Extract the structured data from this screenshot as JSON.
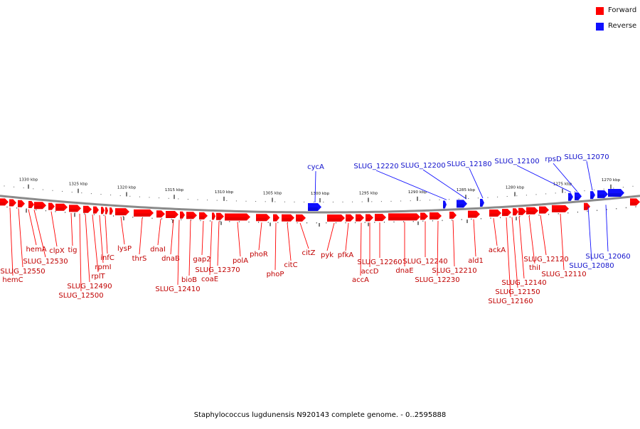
{
  "legend": [
    {
      "label": "Forward",
      "color": "#ff0000"
    },
    {
      "label": "Reverse",
      "color": "#1010ff"
    }
  ],
  "colors": {
    "forward": "#ff0000",
    "reverse": "#1010ff",
    "backbone": "#8a8a8a"
  },
  "caption": "Staphylococcus lugdunensis N920143 complete genome. - 0..2595888",
  "scale_ticks": [
    {
      "label": "1330 kbp"
    },
    {
      "label": "1325 kbp"
    },
    {
      "label": "1320 kbp"
    },
    {
      "label": "1315 kbp"
    },
    {
      "label": "1310 kbp"
    },
    {
      "label": "1305 kbp"
    },
    {
      "label": "1300 kbp"
    },
    {
      "label": "1295 kbp"
    },
    {
      "label": "1290 kbp"
    },
    {
      "label": "1285 kbp"
    },
    {
      "label": "1280 kbp"
    },
    {
      "label": "1275 kbp"
    },
    {
      "label": "1270 kbp"
    }
  ],
  "forward_labels": [
    "hemC",
    "SLUG_12550",
    "hemA",
    "SLUG_12530",
    "clpX",
    "tig",
    "SLUG_12500",
    "SLUG_12490",
    "rplT",
    "rpmI",
    "infC",
    "lysP",
    "thrS",
    "dnaI",
    "dnaB",
    "SLUG_12410",
    "bioB",
    "gap2",
    "coaE",
    "SLUG_12370",
    "polA",
    "phoR",
    "phoP",
    "citC",
    "citZ",
    "pyk",
    "pfkA",
    "accA",
    "accD",
    "SLUG_12260",
    "dnaE",
    "SLUG_12240",
    "SLUG_12230",
    "SLUG_12210",
    "ald1",
    "ackA",
    "SLUG_12160",
    "SLUG_12150",
    "SLUG_12140",
    "thiI",
    "SLUG_12120",
    "SLUG_12110"
  ],
  "reverse_labels": [
    "cycA",
    "SLUG_12220",
    "SLUG_12200",
    "SLUG_12180",
    "SLUG_12100",
    "rpsD",
    "SLUG_12070",
    "SLUG_12080",
    "SLUG_12060"
  ]
}
